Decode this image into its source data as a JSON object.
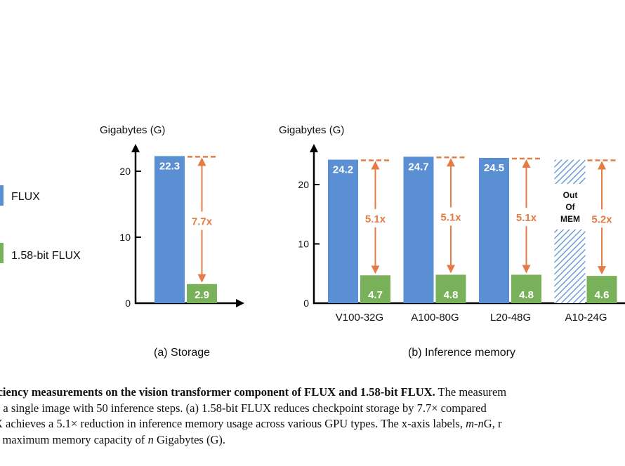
{
  "colors": {
    "flux": "#5b8fd3",
    "bit158": "#79b15a",
    "annotation": "#e57c45",
    "axis": "#000000",
    "hatch": "#5b8fd3"
  },
  "legend": {
    "items": [
      {
        "label": "FLUX",
        "color_key": "flux"
      },
      {
        "label": "1.58-bit FLUX",
        "color_key": "bit158"
      }
    ]
  },
  "chart_data": [
    {
      "type": "bar",
      "id": "storage",
      "subtitle": "(a) Storage",
      "ylabel": "Gigabytes (G)",
      "xlabel": "",
      "ylim": [
        0,
        24
      ],
      "yticks": [
        0,
        10,
        20
      ],
      "grid": false,
      "categories": [
        ""
      ],
      "series": [
        {
          "name": "FLUX",
          "values": [
            22.3
          ],
          "labels": [
            "22.3"
          ]
        },
        {
          "name": "1.58-bit FLUX",
          "values": [
            2.9
          ],
          "labels": [
            "2.9"
          ]
        }
      ],
      "annotations": [
        {
          "category_index": 0,
          "text": "7.7x"
        }
      ]
    },
    {
      "type": "bar",
      "id": "inference",
      "subtitle": "(b) Inference memory",
      "ylabel": "Gigabytes (G)",
      "xlabel": "",
      "ylim": [
        0,
        27
      ],
      "yticks": [
        0,
        10,
        20
      ],
      "grid": false,
      "categories": [
        "V100-32G",
        "A100-80G",
        "L20-48G",
        "A10-24G"
      ],
      "series": [
        {
          "name": "FLUX",
          "values": [
            24.2,
            24.7,
            24.5,
            null
          ],
          "labels": [
            "24.2",
            "24.7",
            "24.5",
            null
          ]
        },
        {
          "name": "1.58-bit FLUX",
          "values": [
            4.7,
            4.8,
            4.8,
            4.6
          ],
          "labels": [
            "4.7",
            "4.8",
            "4.8",
            "4.6"
          ]
        }
      ],
      "out_of_memory": [
        {
          "category_index": 3,
          "label_lines": [
            "Out",
            "Of",
            "MEM"
          ]
        }
      ],
      "annotations": [
        {
          "category_index": 0,
          "text": "5.1x"
        },
        {
          "category_index": 1,
          "text": "5.1x"
        },
        {
          "category_index": 2,
          "text": "5.1x"
        },
        {
          "category_index": 3,
          "text": "5.2x"
        }
      ]
    }
  ],
  "caption": {
    "line1_bold": "iciency measurements on the vision transformer component of FLUX and 1.58-bit FLUX.",
    "line1_rest": " The measurem",
    "line2": "g a single image with 50 inference steps.  (a) 1.58-bit FLUX reduces checkpoint storage by 7.7× compared",
    "line3_a": "X achieves a 5.1× reduction in inference memory usage across various GPU types. The x-axis labels, ",
    "line3_m": "m",
    "line3_dash": "-",
    "line3_n": "n",
    "line3_b": "G, r",
    "line4_a": "a maximum memory capacity of ",
    "line4_n": "n",
    "line4_b": " Gigabytes (G)."
  }
}
